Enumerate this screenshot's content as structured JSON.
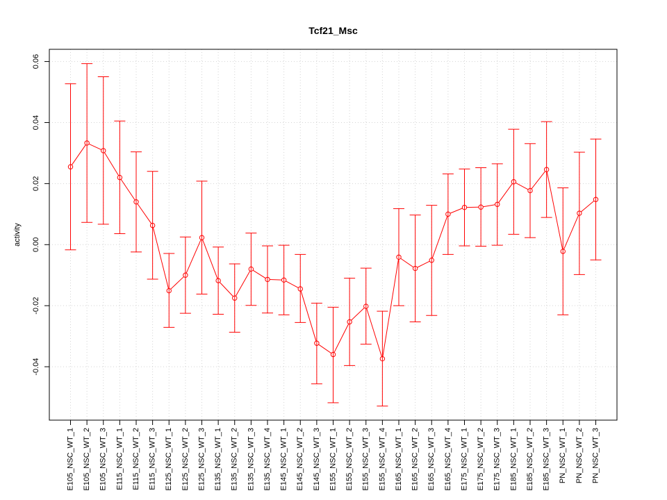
{
  "chart_data": {
    "type": "line",
    "title": "Tcf21_Msc",
    "xlabel": "",
    "ylabel": "activity",
    "ylim": [
      -0.0575,
      0.064
    ],
    "y_ticks": [
      -0.04,
      -0.02,
      0.0,
      0.02,
      0.04,
      0.06
    ],
    "y_tick_labels": [
      "-0.04",
      "-0.02",
      "0.00",
      "0.02",
      "0.04",
      "0.06"
    ],
    "grid": true,
    "color": "#ff0000",
    "categories": [
      "E105_NSC_WT_1",
      "E105_NSC_WT_2",
      "E105_NSC_WT_3",
      "E115_NSC_WT_1",
      "E115_NSC_WT_2",
      "E115_NSC_WT_3",
      "E125_NSC_WT_1",
      "E125_NSC_WT_2",
      "E125_NSC_WT_3",
      "E135_NSC_WT_1",
      "E135_NSC_WT_2",
      "E135_NSC_WT_3",
      "E135_NSC_WT_4",
      "E145_NSC_WT_1",
      "E145_NSC_WT_2",
      "E145_NSC_WT_3",
      "E155_NSC_WT_1",
      "E155_NSC_WT_2",
      "E155_NSC_WT_3",
      "E155_NSC_WT_4",
      "E165_NSC_WT_1",
      "E165_NSC_WT_2",
      "E165_NSC_WT_3",
      "E165_NSC_WT_4",
      "E175_NSC_WT_1",
      "E175_NSC_WT_2",
      "E175_NSC_WT_3",
      "E185_NSC_WT_1",
      "E185_NSC_WT_2",
      "E185_NSC_WT_3",
      "PN_NSC_WT_1",
      "PN_NSC_WT_2",
      "PN_NSC_WT_3"
    ],
    "values": [
      0.0255,
      0.0333,
      0.0308,
      0.022,
      0.014,
      0.0063,
      -0.0151,
      -0.01,
      0.0023,
      -0.0118,
      -0.0175,
      -0.008,
      -0.0114,
      -0.0116,
      -0.0145,
      -0.0323,
      -0.036,
      -0.0253,
      -0.0202,
      -0.0374,
      -0.0041,
      -0.0078,
      -0.0051,
      0.01,
      0.0122,
      0.0123,
      0.0132,
      0.0206,
      0.0177,
      0.0246,
      -0.0022,
      0.0103,
      0.0148
    ],
    "upper": [
      0.0527,
      0.0593,
      0.055,
      0.0405,
      0.0304,
      0.024,
      -0.0029,
      0.0025,
      0.0208,
      -0.0008,
      -0.0063,
      0.0038,
      -0.0004,
      -0.0002,
      -0.0032,
      -0.0192,
      -0.0205,
      -0.011,
      -0.0077,
      -0.0218,
      0.0118,
      0.0097,
      0.0129,
      0.0232,
      0.0248,
      0.0252,
      0.0265,
      0.0378,
      0.0331,
      0.0403,
      0.0186,
      0.0303,
      0.0346
    ],
    "lower": [
      -0.0017,
      0.0073,
      0.0067,
      0.0036,
      -0.0024,
      -0.0113,
      -0.0271,
      -0.0225,
      -0.0162,
      -0.0228,
      -0.0287,
      -0.0199,
      -0.0224,
      -0.023,
      -0.0255,
      -0.0456,
      -0.0518,
      -0.0396,
      -0.0326,
      -0.0529,
      -0.02,
      -0.0253,
      -0.0232,
      -0.0032,
      -0.0004,
      -0.0005,
      -0.0002,
      0.0034,
      0.0023,
      0.0089,
      -0.023,
      -0.0098,
      -0.005
    ]
  }
}
